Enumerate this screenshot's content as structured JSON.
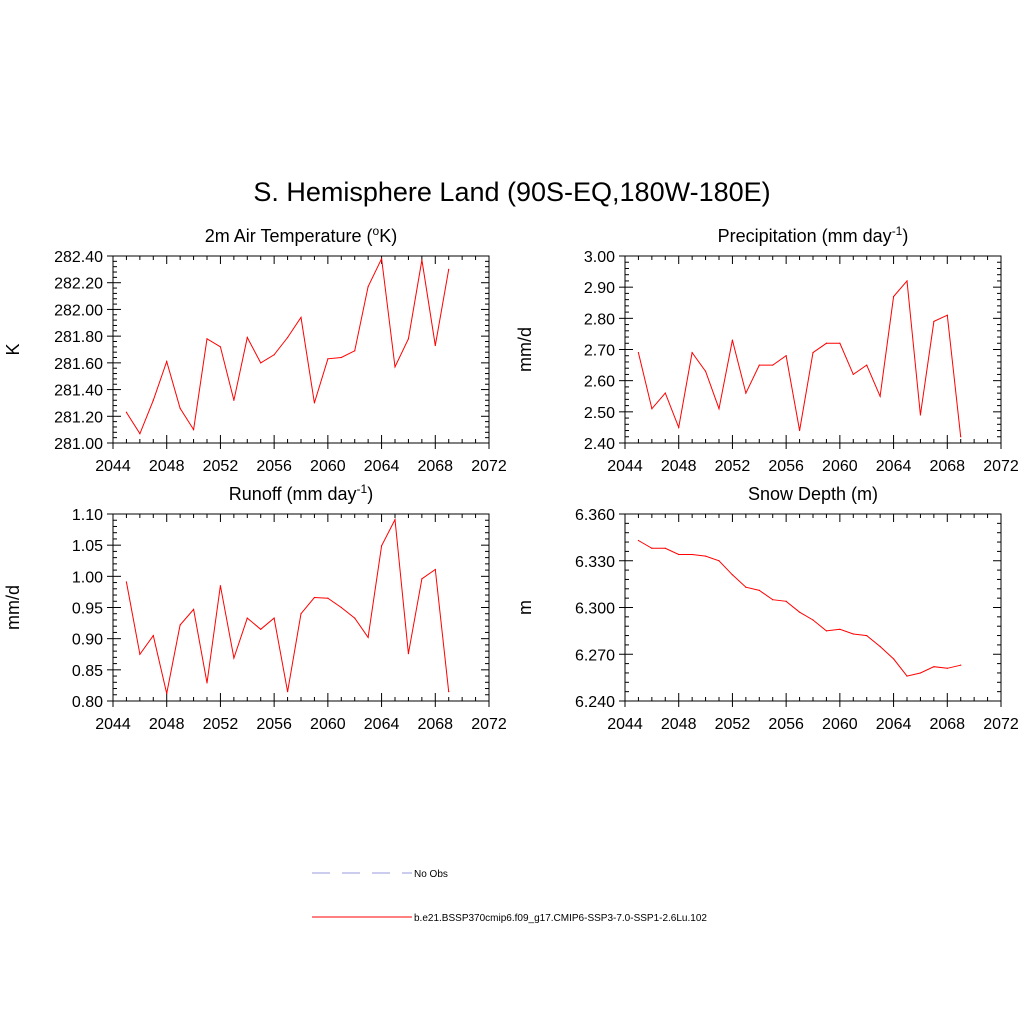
{
  "figure": {
    "title": "S. Hemisphere Land (90S-EQ,180W-180E)"
  },
  "legend": [
    {
      "label": "No Obs",
      "color": "#9999dd",
      "dash": true
    },
    {
      "label": "b.e21.BSSP370cmip6.f09_g17.CMIP6-SSP3-7.0-SSP1-2.6Lu.102",
      "color": "#ff0000",
      "dash": false
    }
  ],
  "chart_data": [
    {
      "type": "line",
      "title": "2m Air Temperature (",
      "title_sup": "o",
      "title_suffix": "K)",
      "ylabel": "K",
      "xlim": [
        2044,
        2072
      ],
      "ylim": [
        281.0,
        282.4
      ],
      "xticks": [
        "2044",
        "2048",
        "2052",
        "2056",
        "2060",
        "2064",
        "2068",
        "2072"
      ],
      "yticks": [
        "281.00",
        "281.20",
        "281.40",
        "281.60",
        "281.80",
        "282.00",
        "282.20",
        "282.40"
      ],
      "series": [
        {
          "color": "#ff0000",
          "x": [
            2045,
            2046,
            2047,
            2048,
            2049,
            2050,
            2051,
            2052,
            2053,
            2054,
            2055,
            2056,
            2057,
            2058,
            2059,
            2060,
            2061,
            2062,
            2063,
            2064,
            2065,
            2066,
            2067,
            2068,
            2069
          ],
          "values": [
            281.23,
            281.07,
            281.32,
            281.61,
            281.26,
            281.1,
            281.78,
            281.72,
            281.32,
            281.79,
            281.6,
            281.66,
            281.79,
            281.94,
            281.3,
            281.63,
            281.64,
            281.69,
            282.17,
            282.38,
            281.57,
            281.78,
            282.37,
            281.73,
            282.3
          ]
        }
      ]
    },
    {
      "type": "line",
      "title": "Precipitation (mm day",
      "title_sup": "-1",
      "title_suffix": ")",
      "ylabel": "mm/d",
      "xlim": [
        2044,
        2072
      ],
      "ylim": [
        2.4,
        3.0
      ],
      "xticks": [
        "2044",
        "2048",
        "2052",
        "2056",
        "2060",
        "2064",
        "2068",
        "2072"
      ],
      "yticks": [
        "2.40",
        "2.50",
        "2.60",
        "2.70",
        "2.80",
        "2.90",
        "3.00"
      ],
      "series": [
        {
          "color": "#ff0000",
          "x": [
            2045,
            2046,
            2047,
            2048,
            2049,
            2050,
            2051,
            2052,
            2053,
            2054,
            2055,
            2056,
            2057,
            2058,
            2059,
            2060,
            2061,
            2062,
            2063,
            2064,
            2065,
            2066,
            2067,
            2068,
            2069
          ],
          "values": [
            2.69,
            2.51,
            2.56,
            2.45,
            2.69,
            2.63,
            2.51,
            2.73,
            2.56,
            2.65,
            2.65,
            2.68,
            2.44,
            2.69,
            2.72,
            2.72,
            2.62,
            2.65,
            2.55,
            2.87,
            2.92,
            2.49,
            2.79,
            2.81,
            2.42
          ]
        }
      ]
    },
    {
      "type": "line",
      "title": "Runoff (mm day",
      "title_sup": "-1",
      "title_suffix": ")",
      "ylabel": "mm/d",
      "xlim": [
        2044,
        2072
      ],
      "ylim": [
        0.8,
        1.1
      ],
      "xticks": [
        "2044",
        "2048",
        "2052",
        "2056",
        "2060",
        "2064",
        "2068",
        "2072"
      ],
      "yticks": [
        "0.80",
        "0.85",
        "0.90",
        "0.95",
        "1.00",
        "1.05",
        "1.10"
      ],
      "series": [
        {
          "color": "#ff0000",
          "x": [
            2045,
            2046,
            2047,
            2048,
            2049,
            2050,
            2051,
            2052,
            2053,
            2054,
            2055,
            2056,
            2057,
            2058,
            2059,
            2060,
            2061,
            2062,
            2063,
            2064,
            2065,
            2066,
            2067,
            2068,
            2069
          ],
          "values": [
            0.991,
            0.875,
            0.905,
            0.812,
            0.922,
            0.947,
            0.829,
            0.985,
            0.869,
            0.933,
            0.915,
            0.933,
            0.815,
            0.94,
            0.966,
            0.965,
            0.95,
            0.933,
            0.902,
            1.049,
            1.091,
            0.876,
            0.996,
            1.011,
            0.815
          ]
        }
      ]
    },
    {
      "type": "line",
      "title": "Snow Depth (m)",
      "title_sup": "",
      "title_suffix": "",
      "ylabel": "m",
      "xlim": [
        2044,
        2072
      ],
      "ylim": [
        6.24,
        6.36
      ],
      "xticks": [
        "2044",
        "2048",
        "2052",
        "2056",
        "2060",
        "2064",
        "2068",
        "2072"
      ],
      "yticks": [
        "6.240",
        "6.270",
        "6.300",
        "6.330",
        "6.360"
      ],
      "series": [
        {
          "color": "#ff0000",
          "x": [
            2045,
            2046,
            2047,
            2048,
            2049,
            2050,
            2051,
            2052,
            2053,
            2054,
            2055,
            2056,
            2057,
            2058,
            2059,
            2060,
            2061,
            2062,
            2063,
            2064,
            2065,
            2066,
            2067,
            2068,
            2069
          ],
          "values": [
            6.343,
            6.338,
            6.338,
            6.334,
            6.334,
            6.333,
            6.33,
            6.321,
            6.313,
            6.311,
            6.305,
            6.304,
            6.297,
            6.292,
            6.285,
            6.286,
            6.283,
            6.282,
            6.275,
            6.267,
            6.256,
            6.258,
            6.262,
            6.261,
            6.263
          ]
        }
      ]
    }
  ]
}
